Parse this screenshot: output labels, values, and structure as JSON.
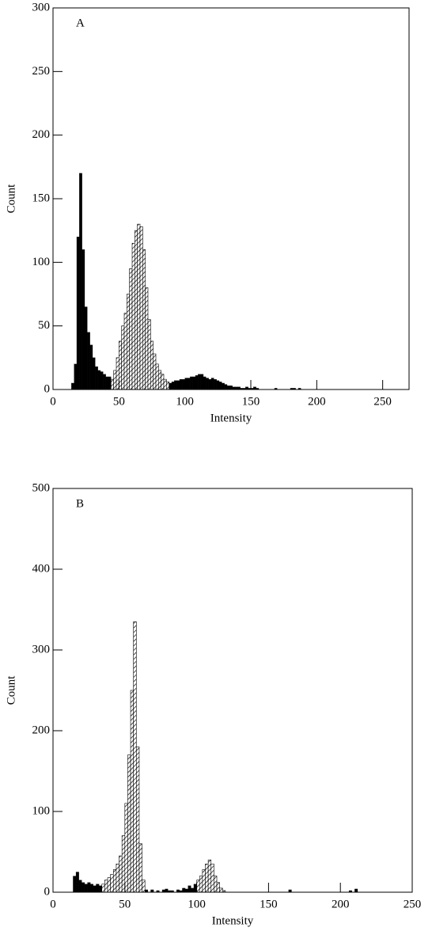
{
  "chart_data": [
    {
      "type": "histogram",
      "panel_label": "A",
      "xlabel": "Intensity",
      "ylabel": "Count",
      "xlim": [
        0,
        270
      ],
      "ylim": [
        0,
        300
      ],
      "xticks": [
        0,
        50,
        100,
        150,
        200,
        250
      ],
      "yticks": [
        0,
        50,
        100,
        150,
        200,
        250,
        300
      ],
      "bins": [
        14,
        16,
        18,
        20,
        22,
        24,
        26,
        28,
        30,
        32,
        34,
        36,
        38,
        40,
        42,
        44,
        46,
        48,
        50,
        52,
        54,
        56,
        58,
        60,
        62,
        64,
        66,
        68,
        70,
        72,
        74,
        76,
        78,
        80,
        82,
        84,
        86,
        88,
        90,
        92,
        94,
        96,
        98,
        100,
        102,
        104,
        106,
        108,
        110,
        112,
        114,
        116,
        118,
        120,
        122,
        124,
        126,
        128,
        130,
        132,
        134,
        136,
        138,
        140,
        142,
        144,
        146,
        148,
        150,
        152,
        154,
        156,
        158,
        160,
        162,
        164,
        166,
        168,
        170,
        172,
        174,
        176,
        178,
        180,
        182,
        184,
        186,
        188
      ],
      "series": [
        {
          "color": "#000000",
          "fill": "solid",
          "values": [
            5,
            20,
            120,
            170,
            110,
            65,
            45,
            35,
            25,
            18,
            15,
            14,
            12,
            10,
            10,
            null,
            null,
            null,
            null,
            null,
            null,
            null,
            null,
            null,
            null,
            null,
            null,
            null,
            null,
            null,
            null,
            null,
            null,
            null,
            null,
            null,
            null,
            5,
            6,
            7,
            7,
            8,
            8,
            9,
            9,
            10,
            10,
            11,
            12,
            12,
            10,
            9,
            8,
            9,
            8,
            7,
            6,
            5,
            4,
            3,
            3,
            2,
            2,
            2,
            1,
            1,
            2,
            1,
            1,
            2,
            1,
            0,
            0,
            0,
            0,
            0,
            0,
            1,
            0,
            0,
            0,
            0,
            0,
            1,
            1,
            0,
            1
          ]
        },
        {
          "color": "#000000",
          "fill": "hatch",
          "values": [
            null,
            null,
            null,
            null,
            null,
            null,
            null,
            null,
            null,
            null,
            null,
            null,
            null,
            null,
            null,
            8,
            15,
            25,
            38,
            50,
            60,
            75,
            95,
            115,
            125,
            130,
            128,
            110,
            80,
            55,
            38,
            28,
            20,
            15,
            12,
            8,
            6,
            null,
            null,
            null,
            null,
            null,
            null,
            null,
            null,
            null,
            null,
            null,
            null,
            null,
            null,
            null,
            null,
            null,
            null,
            null,
            null,
            null,
            null,
            null,
            null,
            null,
            null,
            null,
            null,
            null,
            null,
            null,
            null,
            null,
            null,
            null,
            null,
            null,
            null,
            null,
            null,
            null,
            null,
            null,
            null,
            null,
            null,
            null,
            null,
            null,
            null
          ]
        }
      ]
    },
    {
      "type": "histogram",
      "panel_label": "B",
      "xlabel": "Intensity",
      "ylabel": "Count",
      "xlim": [
        0,
        250
      ],
      "ylim": [
        0,
        500
      ],
      "xticks": [
        0,
        50,
        100,
        150,
        200,
        250
      ],
      "yticks": [
        0,
        100,
        200,
        300,
        400,
        500
      ],
      "bins": [
        14,
        16,
        18,
        20,
        22,
        24,
        26,
        28,
        30,
        32,
        34,
        36,
        38,
        40,
        42,
        44,
        46,
        48,
        50,
        52,
        54,
        56,
        58,
        60,
        62,
        64,
        66,
        68,
        70,
        72,
        74,
        76,
        78,
        80,
        82,
        84,
        86,
        88,
        90,
        92,
        94,
        96,
        98,
        100,
        102,
        104,
        106,
        108,
        110,
        112,
        114,
        116,
        118,
        120,
        122,
        124,
        126,
        128,
        130,
        132,
        134,
        136,
        138,
        140,
        142,
        144,
        146,
        148,
        150,
        152,
        154,
        156,
        158,
        160,
        162,
        164,
        166,
        168,
        170,
        172,
        174,
        176,
        178,
        180,
        182,
        184,
        186,
        188,
        190,
        192,
        194,
        196,
        198,
        200,
        202,
        204,
        206,
        208,
        210,
        212,
        214
      ],
      "series": [
        {
          "color": "#000000",
          "fill": "solid",
          "values": [
            20,
            25,
            15,
            12,
            10,
            12,
            10,
            8,
            10,
            8,
            null,
            null,
            null,
            null,
            null,
            null,
            null,
            null,
            null,
            null,
            null,
            null,
            null,
            null,
            null,
            3,
            0,
            3,
            0,
            2,
            0,
            3,
            4,
            2,
            2,
            0,
            3,
            2,
            5,
            4,
            8,
            5,
            10,
            null,
            null,
            null,
            null,
            null,
            null,
            null,
            null,
            null,
            null,
            0,
            0,
            0,
            0,
            0,
            0,
            0,
            0,
            0,
            0,
            0,
            0,
            0,
            0,
            0,
            0,
            0,
            0,
            0,
            0,
            0,
            0,
            3,
            0,
            0,
            0,
            0,
            0,
            0,
            0,
            0,
            0,
            0,
            0,
            0,
            0,
            0,
            0,
            0,
            0,
            0,
            0,
            0,
            2,
            0,
            4,
            0
          ]
        },
        {
          "color": "#000000",
          "fill": "hatch",
          "values": [
            null,
            null,
            null,
            null,
            null,
            null,
            null,
            null,
            null,
            null,
            10,
            15,
            18,
            22,
            28,
            35,
            45,
            70,
            110,
            170,
            250,
            335,
            180,
            60,
            15,
            null,
            null,
            null,
            null,
            null,
            null,
            null,
            null,
            null,
            null,
            null,
            null,
            null,
            null,
            null,
            null,
            null,
            null,
            15,
            20,
            28,
            35,
            40,
            35,
            20,
            12,
            5,
            2,
            null,
            null,
            null,
            null,
            null,
            null,
            null,
            null,
            null,
            null,
            null,
            null,
            null,
            null,
            null,
            null,
            null,
            null,
            null,
            null,
            null,
            null,
            null,
            null,
            null,
            null,
            null,
            null,
            null,
            null,
            null,
            null,
            null,
            null,
            null,
            null,
            null,
            null,
            null,
            null,
            null,
            null,
            null,
            null,
            null,
            null,
            null
          ]
        }
      ]
    }
  ]
}
